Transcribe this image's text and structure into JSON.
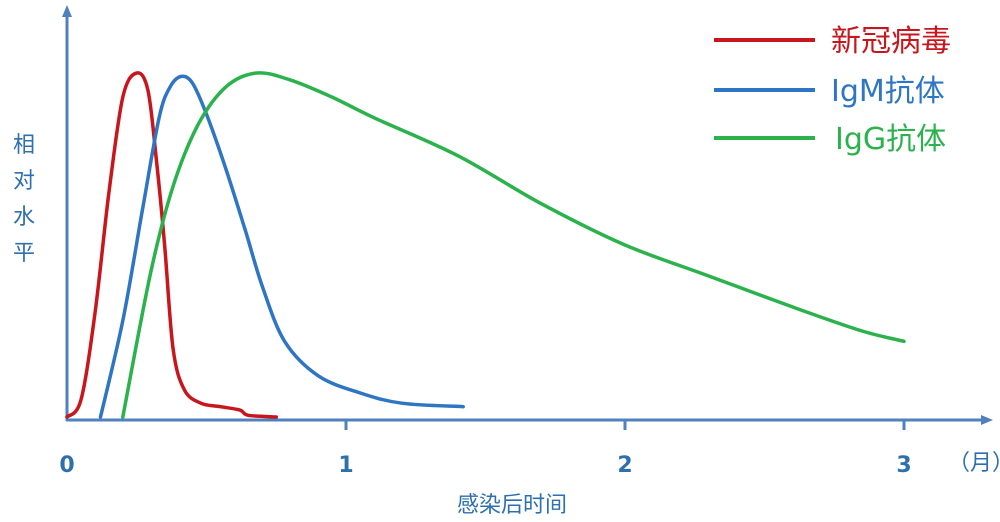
{
  "chart_data": {
    "type": "line",
    "xlabel": "感染后时间",
    "ylabel": "相对水平",
    "x_unit": "（月）",
    "x_ticks": [
      "0",
      "1",
      "2",
      "3"
    ],
    "xlim": [
      0,
      3.3
    ],
    "ylim": [
      0,
      1.05
    ],
    "grid": false,
    "legend_position": "top-right",
    "series": [
      {
        "name": "新冠病毒",
        "color": "#c8161d",
        "points": [
          [
            0,
            0
          ],
          [
            0.05,
            0.05
          ],
          [
            0.1,
            0.3
          ],
          [
            0.15,
            0.65
          ],
          [
            0.2,
            0.93
          ],
          [
            0.25,
            1.0
          ],
          [
            0.29,
            0.95
          ],
          [
            0.32,
            0.75
          ],
          [
            0.35,
            0.5
          ],
          [
            0.38,
            0.2
          ],
          [
            0.42,
            0.08
          ],
          [
            0.48,
            0.04
          ],
          [
            0.55,
            0.03
          ],
          [
            0.62,
            0.02
          ],
          [
            0.65,
            0.005
          ],
          [
            0.75,
            0.0
          ]
        ]
      },
      {
        "name": "IgM抗体",
        "color": "#2e75c3",
        "points": [
          [
            0.12,
            0
          ],
          [
            0.2,
            0.28
          ],
          [
            0.27,
            0.6
          ],
          [
            0.33,
            0.87
          ],
          [
            0.37,
            0.96
          ],
          [
            0.41,
            0.99
          ],
          [
            0.45,
            0.97
          ],
          [
            0.5,
            0.88
          ],
          [
            0.57,
            0.72
          ],
          [
            0.64,
            0.54
          ],
          [
            0.7,
            0.38
          ],
          [
            0.78,
            0.22
          ],
          [
            0.9,
            0.12
          ],
          [
            1.05,
            0.07
          ],
          [
            1.2,
            0.04
          ],
          [
            1.42,
            0.03
          ]
        ]
      },
      {
        "name": "IgG抗体",
        "color": "#2bb24c",
        "points": [
          [
            0.2,
            0
          ],
          [
            0.3,
            0.42
          ],
          [
            0.38,
            0.67
          ],
          [
            0.47,
            0.85
          ],
          [
            0.57,
            0.96
          ],
          [
            0.68,
            1.0
          ],
          [
            0.8,
            0.98
          ],
          [
            0.95,
            0.93
          ],
          [
            1.1,
            0.87
          ],
          [
            1.4,
            0.76
          ],
          [
            1.7,
            0.62
          ],
          [
            2.0,
            0.5
          ],
          [
            2.3,
            0.41
          ],
          [
            2.6,
            0.32
          ],
          [
            2.85,
            0.25
          ],
          [
            3.0,
            0.22
          ]
        ]
      }
    ]
  }
}
